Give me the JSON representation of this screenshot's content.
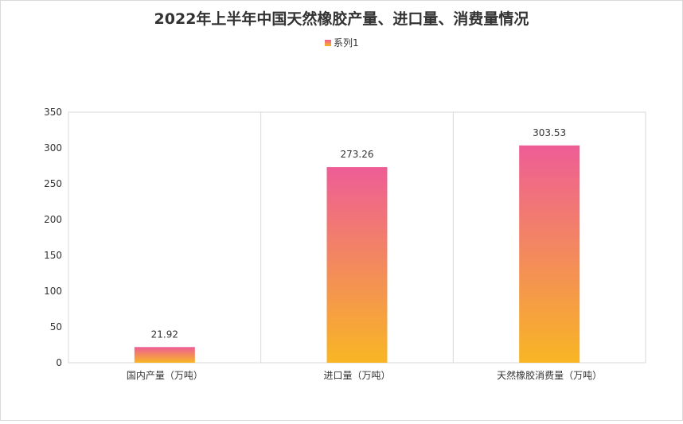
{
  "chart_data": {
    "type": "bar",
    "title": "2022年上半年中国天然橡胶产量、进口量、消费量情况",
    "categories": [
      "国内产量（万吨）",
      "进口量（万吨）",
      "天然橡胶消费量（万吨）"
    ],
    "series": [
      {
        "name": "系列1",
        "values": [
          21.92,
          273.26,
          303.53
        ]
      }
    ],
    "yticks": [
      "0",
      "50",
      "100",
      "150",
      "200",
      "250",
      "300",
      "350"
    ],
    "data_labels": [
      "21.92",
      "273.26",
      "303.53"
    ],
    "ylim": [
      0,
      350
    ],
    "legend_position": "top-center",
    "gradient_colors": {
      "top": "#ee5d96",
      "bottom": "#f8b624"
    }
  }
}
